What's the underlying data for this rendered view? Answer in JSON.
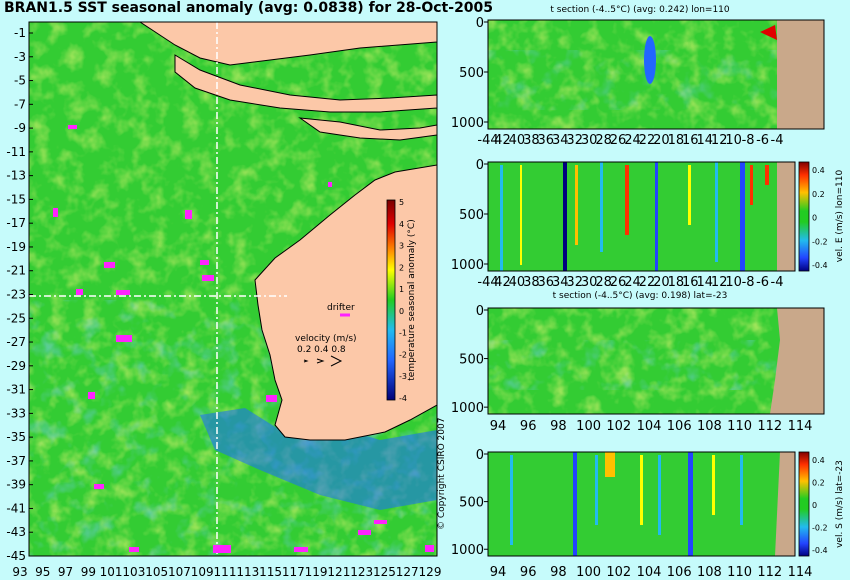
{
  "title": "BRAN1.5 SST seasonal anomaly (avg: 0.0838) for 28-Oct-2005",
  "copyright": "© Copyright CSIRO 2007",
  "colors": {
    "background": "#c6fbfb",
    "land": "#fcc8a8",
    "section_land": "#c9a88a",
    "drifter": "#ff22ff",
    "crosshair": "#ffffff"
  },
  "map": {
    "lat_ticks": [
      "-1",
      "-3",
      "-5",
      "-7",
      "-9",
      "-11",
      "-13",
      "-15",
      "-17",
      "-19",
      "-21",
      "-23",
      "-25",
      "-27",
      "-29",
      "-31",
      "-33",
      "-35",
      "-37",
      "-39",
      "-41",
      "-43",
      "-45"
    ],
    "lon_ticks": [
      "93",
      "95",
      "97",
      "99",
      "101",
      "103",
      "105",
      "107",
      "109",
      "111",
      "113",
      "115",
      "117",
      "119",
      "121",
      "123",
      "125",
      "127",
      "129"
    ],
    "colorbar": {
      "ticks": [
        "5",
        "4",
        "3",
        "2",
        "1",
        "0",
        "-1",
        "-2",
        "-3",
        "-4"
      ],
      "label": "temperature seasonal anomaly (°C)",
      "range": [
        -4,
        5
      ]
    },
    "drifter_label": "drifter",
    "velocity_label": "velocity (m/s)",
    "velocity_values": "0.2 0.4 0.8",
    "section_lon": 110,
    "section_lat": -23
  },
  "panels": [
    {
      "title": "t section (-4..5°C) (avg: 0.242) lon=110",
      "y_ticks": [
        "0",
        "500",
        "1000"
      ],
      "x_ticks": [
        "-44",
        "42",
        "40",
        "38",
        "36",
        "34",
        "32",
        "30",
        "28",
        "26",
        "24",
        "22",
        "20",
        "18",
        "16",
        "14",
        "12",
        "10",
        "-8",
        "-6",
        "-4"
      ],
      "colorbar": null
    },
    {
      "title": "",
      "y_ticks": [
        "0",
        "500",
        "1000"
      ],
      "x_ticks": [
        "-44",
        "42",
        "40",
        "38",
        "36",
        "34",
        "32",
        "30",
        "28",
        "26",
        "24",
        "22",
        "20",
        "18",
        "16",
        "14",
        "12",
        "10",
        "-8",
        "-6",
        "-4"
      ],
      "colorbar": {
        "ticks": [
          "0.4",
          "0.2",
          "0",
          "-0.2",
          "-0.4"
        ],
        "label": "vel. E (m/s) lon=110"
      }
    },
    {
      "title": "t section (-4..5°C) (avg: 0.198) lat=-23",
      "y_ticks": [
        "0",
        "500",
        "1000"
      ],
      "x_ticks": [
        "94",
        "96",
        "98",
        "100",
        "102",
        "104",
        "106",
        "108",
        "110",
        "112",
        "114"
      ],
      "colorbar": null
    },
    {
      "title": "",
      "y_ticks": [
        "0",
        "500",
        "1000"
      ],
      "x_ticks": [
        "94",
        "96",
        "98",
        "100",
        "102",
        "104",
        "106",
        "108",
        "110",
        "112",
        "114"
      ],
      "colorbar": {
        "ticks": [
          "0.4",
          "0.2",
          "0",
          "-0.2",
          "-0.4"
        ],
        "label": "vel. S (m/s) lat=-23"
      }
    }
  ]
}
